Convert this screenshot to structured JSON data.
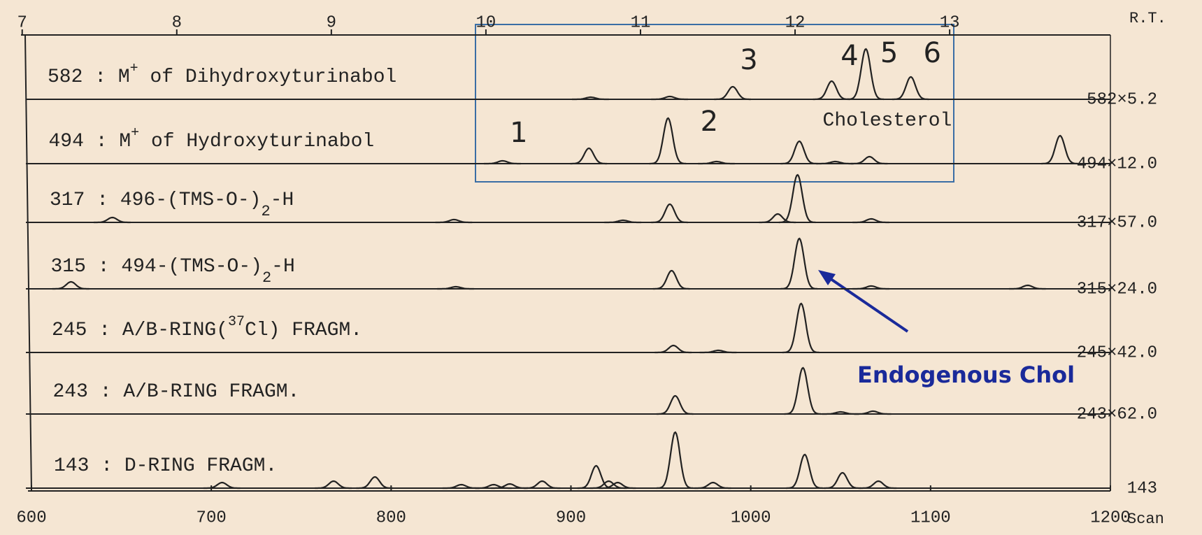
{
  "chart_data": {
    "type": "chromatogram",
    "xlabel": "Scan",
    "xlim": [
      600,
      1200
    ],
    "xticks": [
      600,
      700,
      800,
      900,
      1000,
      1100,
      1200
    ],
    "x2label": "R.T.",
    "x2lim": [
      7.06,
      14.04
    ],
    "x2ticks": [
      7,
      8,
      9,
      10,
      11,
      12,
      13
    ],
    "color": "#222222",
    "series": [
      {
        "name": [
          {
            "t": "582 : M"
          },
          {
            "t": "+",
            "pos": "sup"
          },
          {
            "t": " of Dihydroxyturinabol"
          }
        ],
        "scale": "582×5.2",
        "x": [
          911,
          955,
          990,
          1045,
          1064,
          1089
        ],
        "values": [
          3,
          4,
          18,
          26,
          72,
          32
        ]
      },
      {
        "name": [
          {
            "t": "494 : M"
          },
          {
            "t": "+",
            "pos": "sup"
          },
          {
            "t": " of Hydroxyturinabol"
          }
        ],
        "scale": "494×12.0",
        "x": [
          862,
          910,
          954,
          981,
          1027,
          1047,
          1066,
          1172
        ],
        "values": [
          4,
          22,
          65,
          3,
          32,
          3,
          10,
          40
        ]
      },
      {
        "name": [
          {
            "t": "317 : 496-(TMS-O-)"
          },
          {
            "t": "2",
            "pos": "sub"
          },
          {
            "t": "-H"
          }
        ],
        "scale": "317×57.0",
        "x": [
          645,
          835,
          929,
          955,
          1015,
          1026,
          1067
        ],
        "values": [
          7,
          4,
          3,
          26,
          12,
          68,
          5
        ]
      },
      {
        "name": [
          {
            "t": "315 : 494-(TMS-O-)"
          },
          {
            "t": "2",
            "pos": "sub"
          },
          {
            "t": "-H"
          }
        ],
        "scale": "315×24.0",
        "x": [
          622,
          836,
          956,
          1027,
          1067,
          1154
        ],
        "values": [
          10,
          3,
          26,
          72,
          4,
          5
        ]
      },
      {
        "name": [
          {
            "t": "245 : A/B-RING("
          },
          {
            "t": "37",
            "pos": "sup"
          },
          {
            "t": "Cl) FRAGM."
          }
        ],
        "scale": "245×42.0",
        "x": [
          957,
          982,
          1028
        ],
        "values": [
          10,
          3,
          70
        ]
      },
      {
        "name": [
          {
            "t": "243 : A/B-RING FRAGM."
          }
        ],
        "scale": "243×62.0",
        "x": [
          958,
          1029,
          1050,
          1068
        ],
        "values": [
          26,
          66,
          3,
          4
        ]
      },
      {
        "name": [
          {
            "t": "143 : D-RING FRAGM."
          }
        ],
        "scale": "143",
        "x": [
          706,
          768,
          791,
          839,
          857,
          866,
          884,
          914,
          921,
          926,
          958,
          979,
          1030,
          1051,
          1071
        ],
        "values": [
          8,
          10,
          16,
          5,
          5,
          6,
          10,
          32,
          10,
          8,
          80,
          8,
          48,
          22,
          10
        ]
      }
    ],
    "peak_labels": [
      "1",
      "2",
      "3",
      "4",
      "5",
      "6",
      "Cholesterol"
    ],
    "annotation": "Endogenous Chol"
  }
}
